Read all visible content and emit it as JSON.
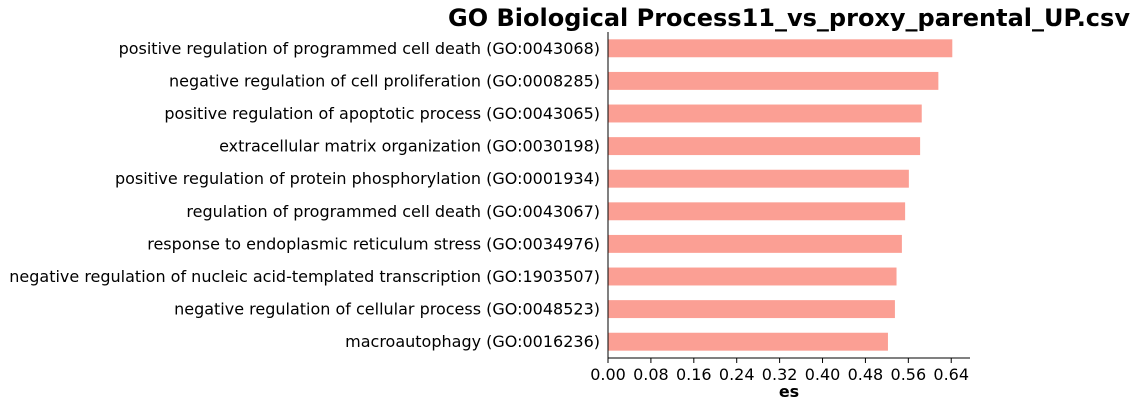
{
  "chart_data": {
    "type": "bar",
    "orientation": "horizontal",
    "title": "GO Biological Process11_vs_proxy_parental_UP.csv",
    "xlabel": "es",
    "ylabel": "",
    "xlim": [
      0,
      0.675
    ],
    "xticks": [
      "0.00",
      "0.08",
      "0.16",
      "0.24",
      "0.32",
      "0.40",
      "0.48",
      "0.56",
      "0.64"
    ],
    "grid": false,
    "legend": "none",
    "bar_color": "#fb9f94",
    "categories": [
      "positive regulation of programmed cell death (GO:0043068)",
      "negative regulation of cell proliferation (GO:0008285)",
      "positive regulation of apoptotic process (GO:0043065)",
      "extracellular matrix organization (GO:0030198)",
      "positive regulation of protein phosphorylation (GO:0001934)",
      "regulation of programmed cell death (GO:0043067)",
      "response to endoplasmic reticulum stress (GO:0034976)",
      "negative regulation of nucleic acid-templated transcription (GO:1903507)",
      "negative regulation of cellular process (GO:0048523)",
      "macroautophagy (GO:0016236)"
    ],
    "values": [
      0.642,
      0.616,
      0.585,
      0.582,
      0.561,
      0.554,
      0.548,
      0.538,
      0.535,
      0.522
    ]
  }
}
